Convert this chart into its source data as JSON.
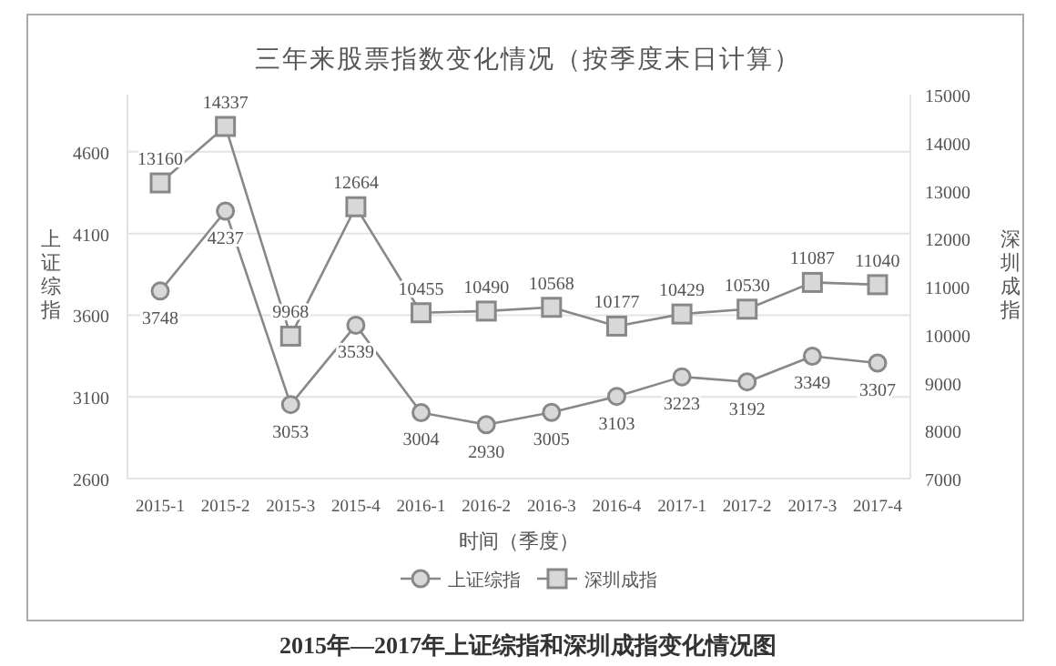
{
  "chart_data": {
    "type": "line",
    "title": "三年来股票指数变化情况（按季度末日计算）",
    "xlabel": "时间（季度）",
    "ylabel": "上证综指",
    "y2label": "深圳成指",
    "categories": [
      "2015-1",
      "2015-2",
      "2015-3",
      "2015-4",
      "2016-1",
      "2016-2",
      "2016-3",
      "2016-4",
      "2017-1",
      "2017-2",
      "2017-3",
      "2017-4"
    ],
    "series": [
      {
        "name": "上证综指",
        "color": "#888888",
        "marker": "circle",
        "values": [
          3748,
          4237,
          3053,
          3539,
          3004,
          2930,
          3005,
          3103,
          3223,
          3192,
          3349,
          3307
        ]
      },
      {
        "name": "深圳成指",
        "color": "#888888",
        "marker": "square",
        "axis": "y2",
        "values": [
          13160,
          14337,
          9968,
          12664,
          10455,
          10490,
          10568,
          10177,
          10429,
          10530,
          11087,
          11040
        ]
      }
    ],
    "ylim": [
      2600,
      4950
    ],
    "yticks": [
      2600,
      3100,
      3600,
      4100,
      4600
    ],
    "y2lim": [
      7000,
      15000
    ],
    "y2ticks": [
      7000,
      8000,
      9000,
      10000,
      11000,
      12000,
      13000,
      14000,
      15000
    ],
    "grid": "y",
    "legend": "bottom",
    "data_labels": true,
    "line_style": "solid",
    "annotations": [
      "2015年—2017年上证综指和深圳成指变化情况图"
    ]
  }
}
